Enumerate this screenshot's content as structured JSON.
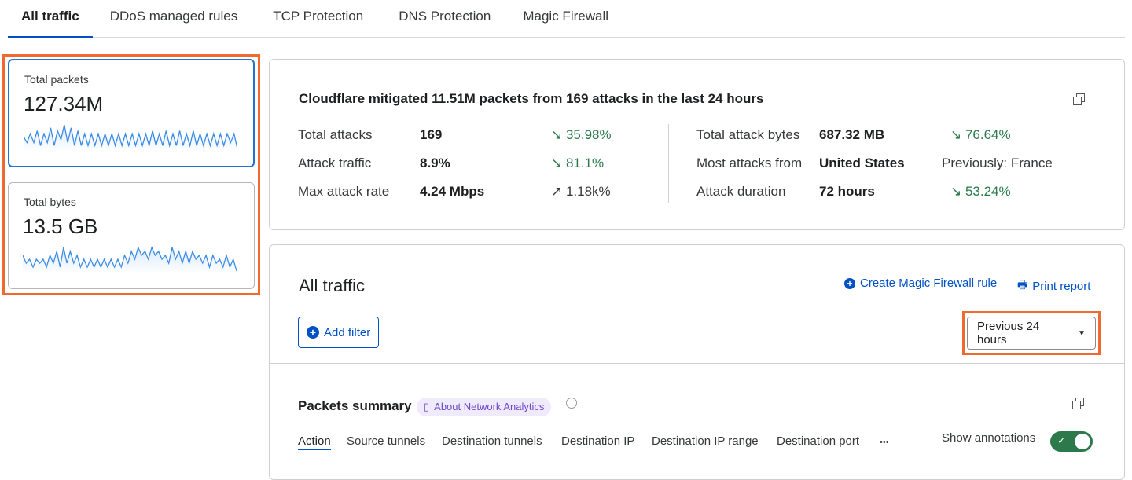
{
  "tabs": [
    "All traffic",
    "DDoS managed rules",
    "TCP Protection",
    "DNS Protection",
    "Magic Firewall"
  ],
  "metrics": [
    {
      "label": "Total packets",
      "value": "127.34M",
      "spark": [
        4,
        2,
        5,
        2,
        6,
        1,
        5,
        2,
        7,
        1,
        6,
        3,
        8,
        2,
        7,
        1,
        6,
        1,
        5,
        1,
        5,
        1,
        5,
        1,
        5,
        1,
        5,
        1,
        5,
        1,
        5,
        1,
        5,
        1,
        5,
        1,
        5,
        1,
        6,
        1,
        5,
        1,
        6,
        1,
        5,
        1,
        6,
        1,
        5,
        1,
        6,
        1,
        5,
        1,
        5,
        1,
        5,
        1,
        5,
        1,
        5,
        2,
        5,
        0
      ],
      "color": "#3b8ce6"
    },
    {
      "label": "Total bytes",
      "value": "13.5 GB",
      "spark": [
        4,
        2,
        3,
        1,
        3,
        2,
        3,
        1,
        4,
        2,
        5,
        1,
        6,
        2,
        5,
        2,
        4,
        1,
        3,
        1,
        3,
        1,
        3,
        1,
        3,
        1,
        3,
        1,
        3,
        1,
        4,
        2,
        5,
        3,
        6,
        4,
        5,
        3,
        6,
        4,
        5,
        3,
        4,
        2,
        6,
        3,
        5,
        2,
        5,
        2,
        5,
        3,
        4,
        2,
        4,
        1,
        4,
        2,
        3,
        1,
        4,
        1,
        3,
        0
      ],
      "color": "#3b8ce6"
    }
  ],
  "summary": {
    "title": "Cloudflare mitigated 11.51M packets from 169 attacks in the last 24 hours",
    "left": [
      {
        "label": "Total attacks",
        "value": "169",
        "change": "35.98%",
        "dir": "down"
      },
      {
        "label": "Attack traffic",
        "value": "8.9%",
        "change": "81.1%",
        "dir": "down"
      },
      {
        "label": "Max attack rate",
        "value": "4.24 Mbps",
        "change": "1.18k%",
        "dir": "up"
      }
    ],
    "right": [
      {
        "label": "Total attack bytes",
        "value": "687.32 MB",
        "change": "76.64%",
        "dir": "down"
      },
      {
        "label": "Most attacks from",
        "value": "United States",
        "change": "Previously: France",
        "dir": "none"
      },
      {
        "label": "Attack duration",
        "value": "72 hours",
        "change": "53.24%",
        "dir": "down"
      }
    ]
  },
  "traffic": {
    "title": "All traffic",
    "create_rule": "Create Magic Firewall rule",
    "print": "Print report",
    "add_filter": "Add filter",
    "time_range": "Previous 24 hours"
  },
  "packets": {
    "title": "Packets summary",
    "badge": "About Network Analytics",
    "tabs": [
      "Action",
      "Source tunnels",
      "Destination tunnels",
      "Destination IP",
      "Destination IP range",
      "Destination port"
    ],
    "more": "•••",
    "annotations_label": "Show annotations",
    "annotations_on": true
  },
  "colors": {
    "accent": "#0051c3",
    "highlight": "#f06a2f",
    "positive": "#2c7a4b",
    "toggle": "#2c7a4b"
  }
}
